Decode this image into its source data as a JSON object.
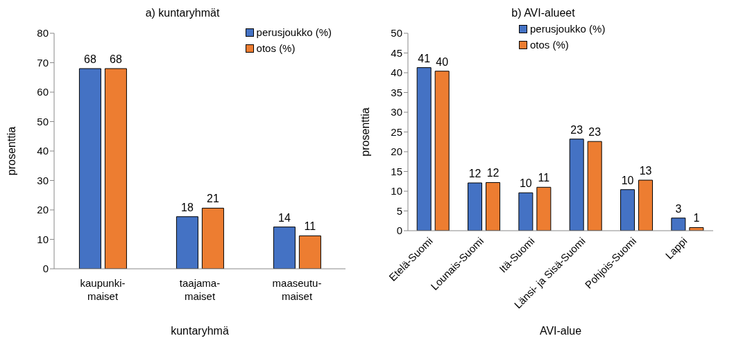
{
  "chart_data": [
    {
      "type": "bar",
      "title": "a) kuntaryhmät",
      "xlabel": "kuntaryhmä",
      "ylabel": "prosenttia",
      "categories": [
        "kaupunki-\nmaiset",
        "taajama-\nmaiset",
        "maaseutu-\nmaiset"
      ],
      "series": [
        {
          "name": "perusjoukko (%)",
          "color": "#4472c4",
          "values": [
            68,
            17.7,
            14.2
          ],
          "value_labels": [
            "68",
            "18",
            "14"
          ]
        },
        {
          "name": "otos (%)",
          "color": "#ed7d31",
          "values": [
            68,
            20.6,
            11.2
          ],
          "value_labels": [
            "68",
            "21",
            "11"
          ]
        }
      ],
      "ylim": [
        0,
        80
      ],
      "yticks": [
        0,
        10,
        20,
        30,
        40,
        50,
        60,
        70,
        80
      ],
      "grid": false,
      "legend": "top right"
    },
    {
      "type": "bar",
      "title": "b) AVI-alueet",
      "xlabel": "AVI-alue",
      "ylabel": "prosenttia",
      "categories": [
        "Etelä-Suomi",
        "Lounais-Suomi",
        "Itä-Suomi",
        "Länsi- ja Sisä-Suomi",
        "Pohjois-Suomi",
        "Lappi"
      ],
      "series": [
        {
          "name": "perusjoukko (%)",
          "color": "#4472c4",
          "values": [
            41.3,
            12.1,
            9.6,
            23.2,
            10.4,
            3.2
          ],
          "value_labels": [
            "41",
            "12",
            "10",
            "23",
            "10",
            "3"
          ]
        },
        {
          "name": "otos (%)",
          "color": "#ed7d31",
          "values": [
            40.4,
            12.2,
            11.0,
            22.6,
            12.8,
            0.8
          ],
          "value_labels": [
            "40",
            "12",
            "11",
            "23",
            "13",
            "1"
          ]
        }
      ],
      "ylim": [
        0,
        50
      ],
      "yticks": [
        0,
        5,
        10,
        15,
        20,
        25,
        30,
        35,
        40,
        45,
        50
      ],
      "grid": false,
      "legend": "top"
    }
  ]
}
